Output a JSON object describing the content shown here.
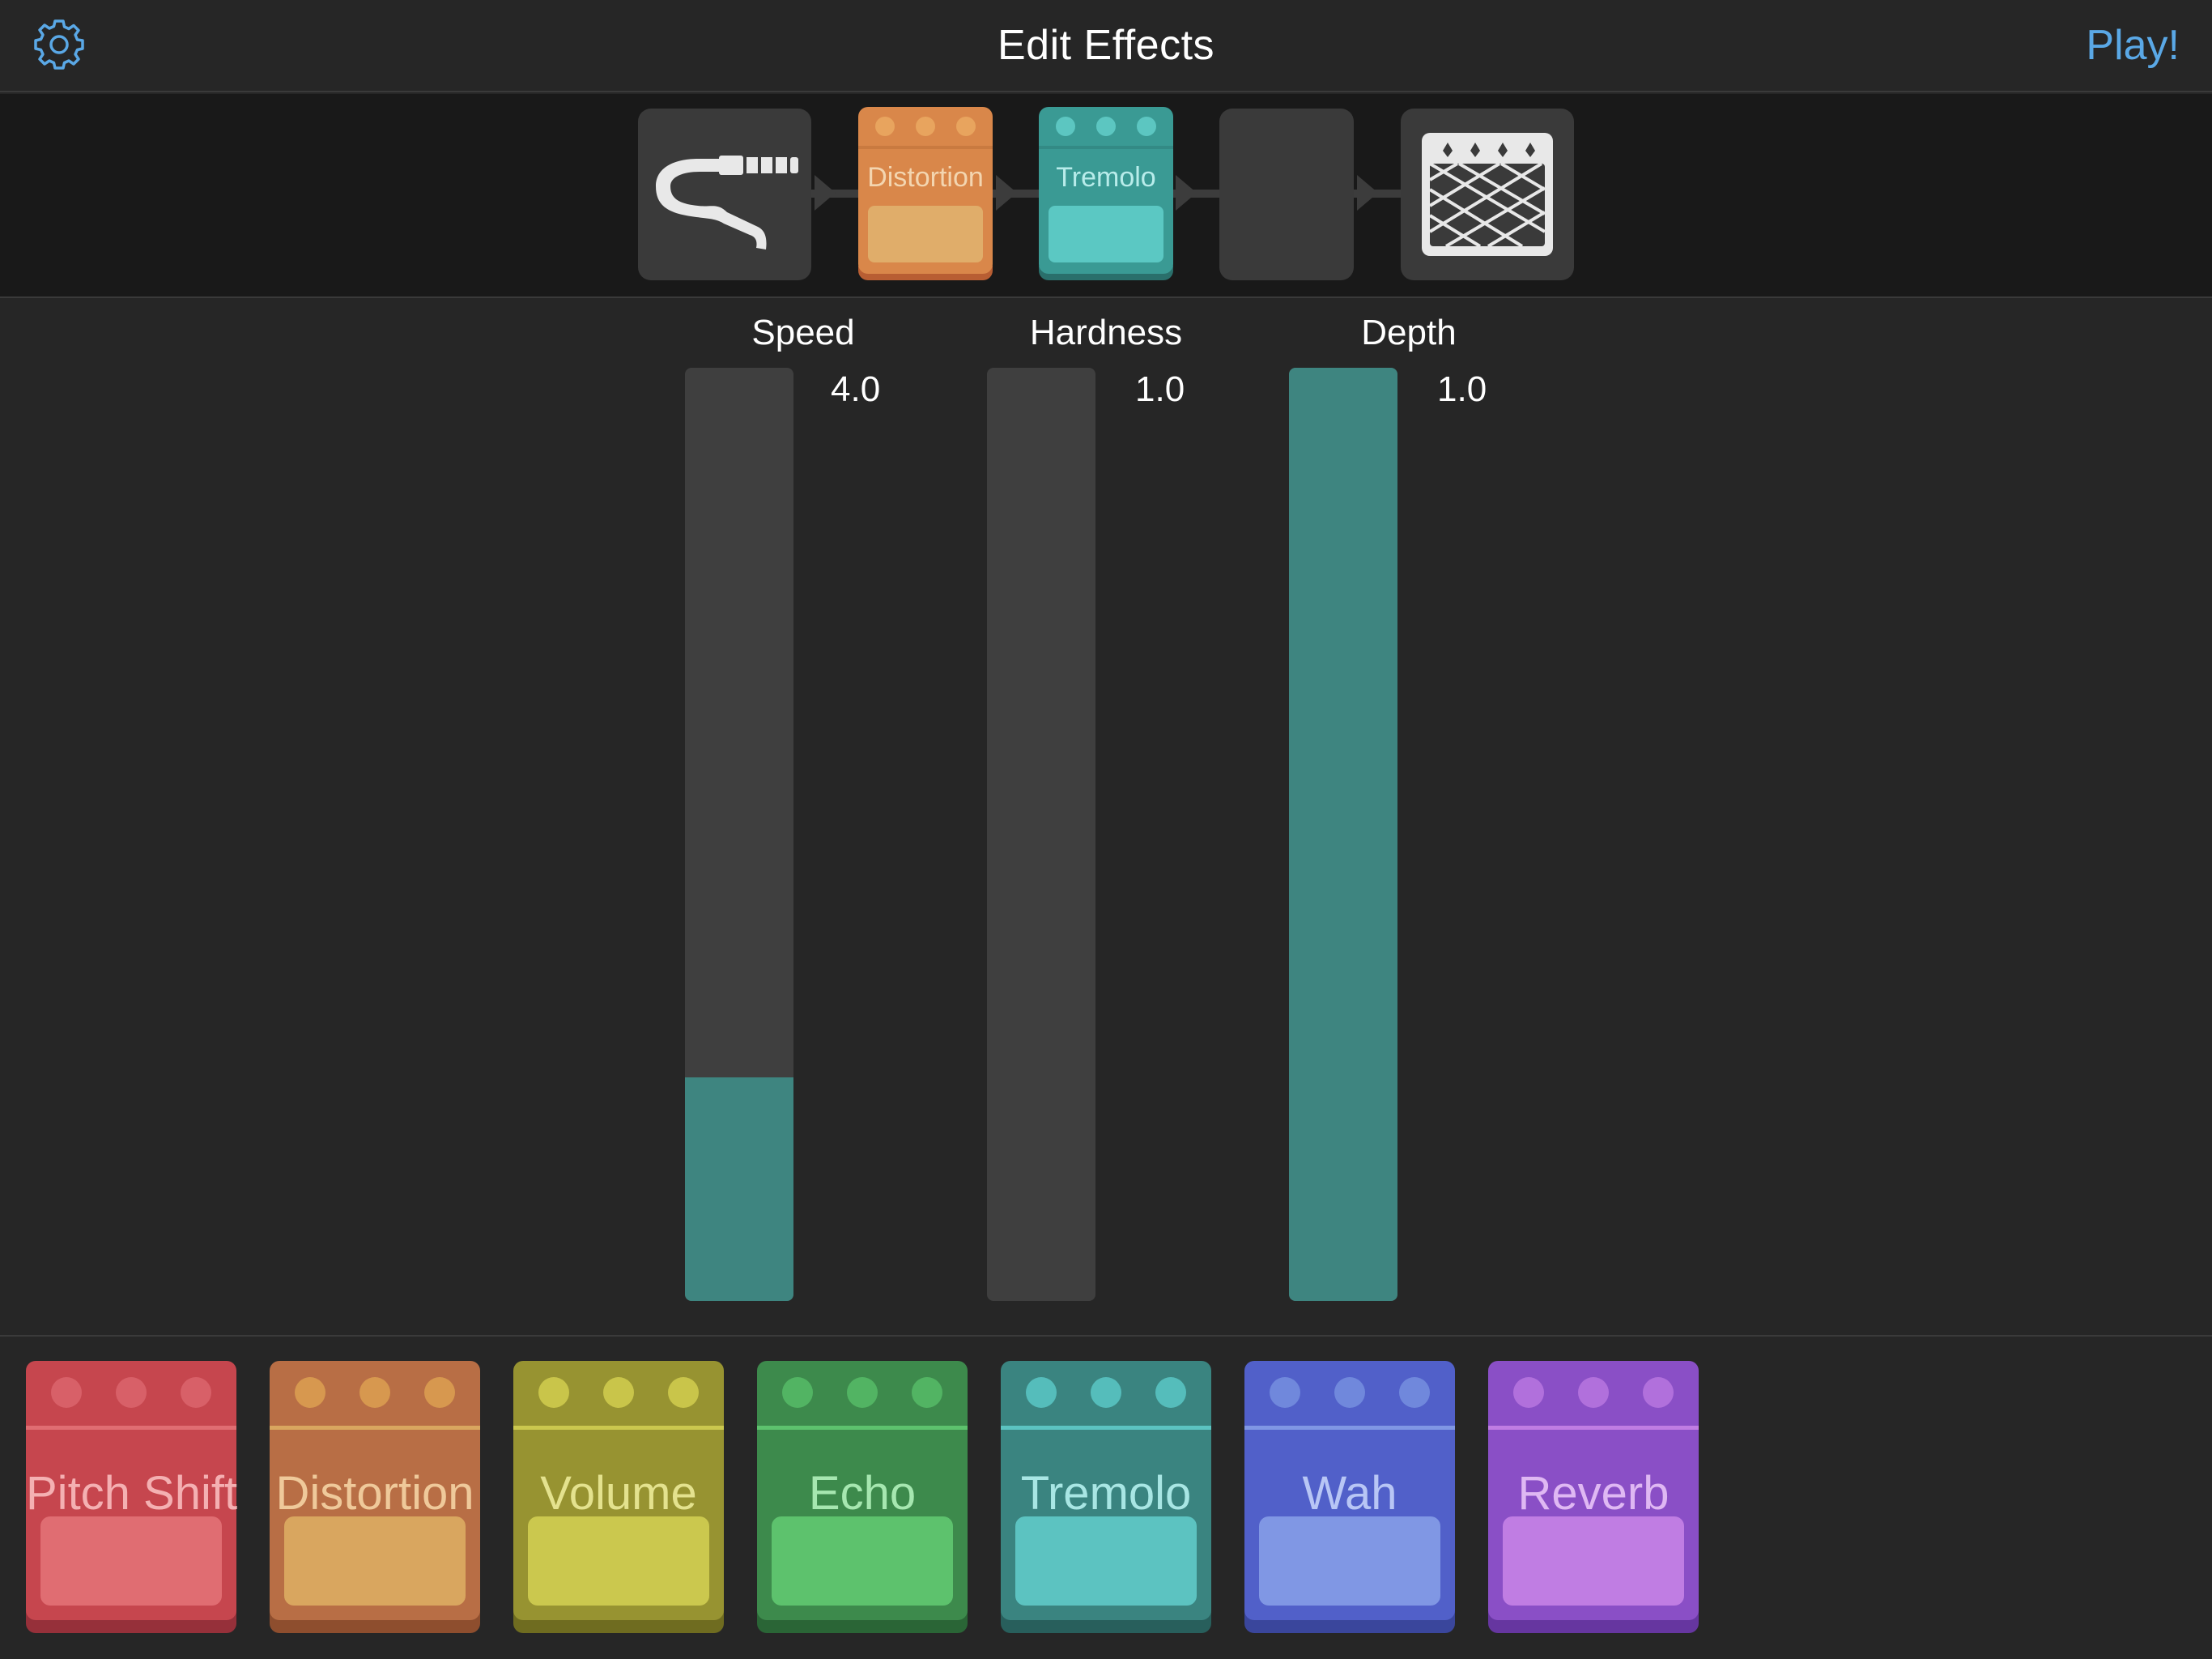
{
  "navbar": {
    "settings_icon": "gear-icon",
    "title": "Edit Effects",
    "play_label": "Play!"
  },
  "chain": {
    "input_icon": "audio-cable-icon",
    "output_icon": "amplifier-icon",
    "pedals": [
      {
        "label": "Distortion",
        "body": "#d9874a",
        "bottom": "#b85e33",
        "switch": "#e0ad6a",
        "label_color": "#f3d5b0"
      },
      {
        "label": "Tremolo",
        "body": "#3a9a94",
        "bottom": "#2a6f6b",
        "switch": "#5bc8c3",
        "label_color": "#b8ecea"
      }
    ]
  },
  "params": [
    {
      "label": "Speed",
      "value": "4.0",
      "fill": 0.24
    },
    {
      "label": "Hardness",
      "value": "1.0",
      "fill": 0.0
    },
    {
      "label": "Depth",
      "value": "1.0",
      "fill": 1.0
    }
  ],
  "library": {
    "pedals": [
      {
        "label": "Pitch Shift",
        "body": "#c6464e",
        "bottom": "#96303a",
        "switch": "#e06d72",
        "label_color": "#f4b0b2",
        "knob": "#d86068"
      },
      {
        "label": "Distortion",
        "body": "#b86e45",
        "bottom": "#8e4e2e",
        "switch": "#d9a65f",
        "label_color": "#efc99a",
        "knob": "#d7984f"
      },
      {
        "label": "Volume",
        "body": "#979331",
        "bottom": "#6f6c20",
        "switch": "#cbc84e",
        "label_color": "#e4e28e",
        "knob": "#c9c54a"
      },
      {
        "label": "Echo",
        "body": "#3d8a4c",
        "bottom": "#2a6536",
        "switch": "#5dc26d",
        "label_color": "#a6e7b0",
        "knob": "#52b463"
      },
      {
        "label": "Tremolo",
        "body": "#3a8480",
        "bottom": "#285f5c",
        "switch": "#5cc3c1",
        "label_color": "#a8e6e4",
        "knob": "#55bdbb"
      },
      {
        "label": "Wah",
        "body": "#5160c9",
        "bottom": "#3a469c",
        "switch": "#8097e4",
        "label_color": "#b8c6f5",
        "knob": "#7088dc"
      },
      {
        "label": "Reverb",
        "body": "#8a4fc6",
        "bottom": "#6636a0",
        "switch": "#c07de3",
        "label_color": "#dfb8f3",
        "knob": "#b170dc"
      }
    ]
  }
}
